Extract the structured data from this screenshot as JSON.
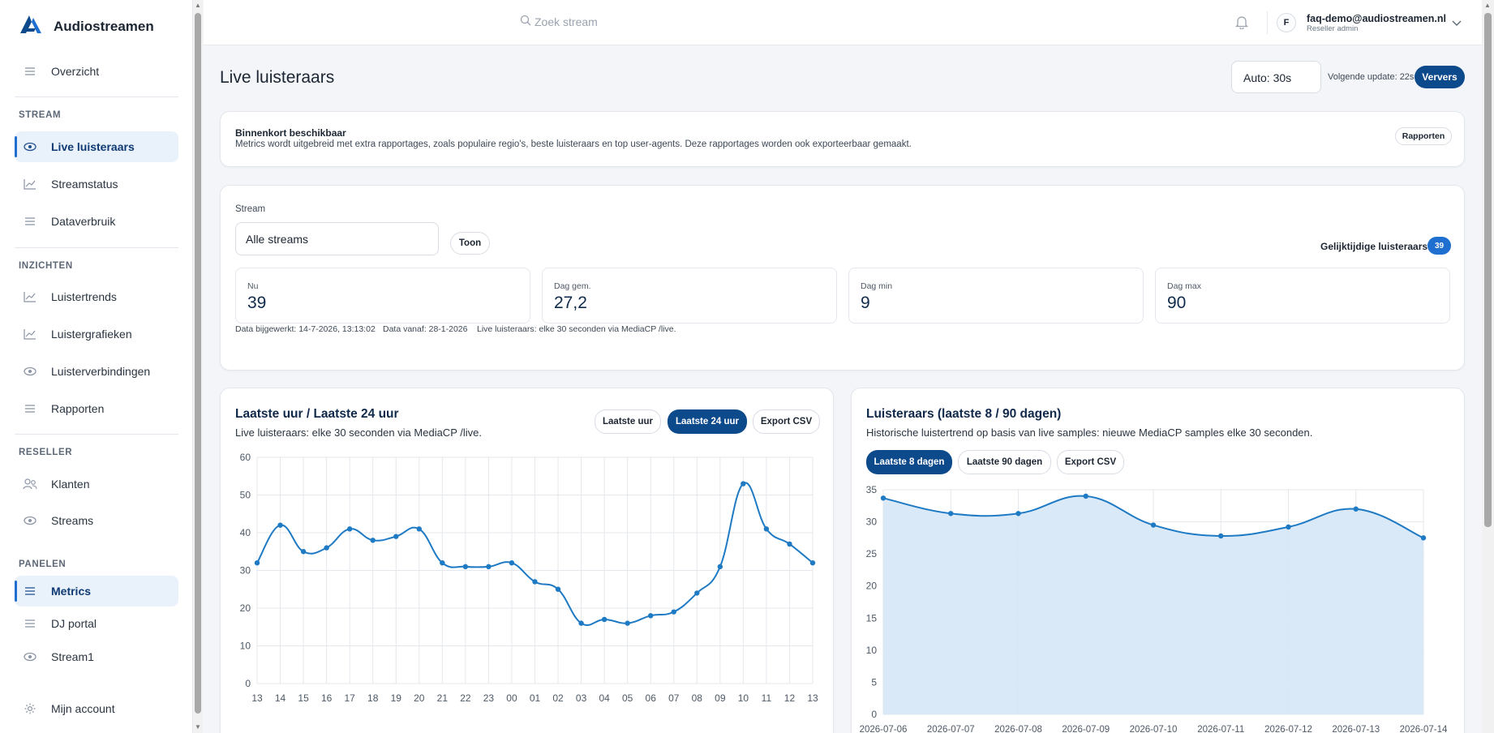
{
  "app": {
    "name": "Audiostreamen"
  },
  "sidebar": {
    "overview": "Overzicht",
    "sections": {
      "stream": "STREAM",
      "insights": "INZICHTEN",
      "reseller": "RESELLER",
      "panels": "PANELEN"
    },
    "items": {
      "live": "Live luisteraars",
      "status": "Streamstatus",
      "data": "Dataverbruik",
      "trends": "Luistertrends",
      "graphs": "Luistergrafieken",
      "connections": "Luisterverbindingen",
      "reports": "Rapporten",
      "clients": "Klanten",
      "streams": "Streams",
      "metrics": "Metrics",
      "dj": "DJ portal",
      "stream1": "Stream1",
      "account": "Mijn account"
    }
  },
  "topbar": {
    "search_placeholder": "Zoek stream",
    "avatar_letter": "F",
    "user_email": "faq-demo@audiostreamen.nl",
    "user_role": "Reseller admin"
  },
  "header": {
    "title": "Live luisteraars",
    "auto_refresh": "Auto: 30s",
    "next_update": "Volgende update: 22s",
    "refresh_button": "Ververs"
  },
  "notice": {
    "title": "Binnenkort beschikbaar",
    "text": "Metrics wordt uitgebreid met extra rapportages, zoals populaire regio's, beste luisteraars en top user-agents. Deze rapportages worden ook exporteerbaar gemaakt.",
    "button": "Rapporten"
  },
  "stream_panel": {
    "label": "Stream",
    "selected": "Alle streams",
    "show_button": "Toon",
    "concurrent_label": "Gelijktijdige luisteraars",
    "concurrent_value": "39",
    "stats": [
      {
        "label": "Nu",
        "value": "39"
      },
      {
        "label": "Dag gem.",
        "value": "27,2"
      },
      {
        "label": "Dag min",
        "value": "9"
      },
      {
        "label": "Dag max",
        "value": "90"
      }
    ],
    "meta": {
      "updated": "Data bijgewerkt: 14-7-2026, 13:13:02",
      "since": "Data vanaf: 28-1-2026",
      "source": "Live luisteraars: elke 30 seconden via MediaCP /live."
    }
  },
  "chart_left_ui": {
    "title": "Laatste uur / Laatste 24 uur",
    "subtitle": "Live luisteraars: elke 30 seconden via MediaCP /live.",
    "btn_hour": "Laatste uur",
    "btn_24h": "Laatste 24 uur",
    "btn_export": "Export CSV"
  },
  "chart_right_ui": {
    "title": "Luisteraars (laatste 8 / 90 dagen)",
    "subtitle": "Historische luistertrend op basis van live samples: nieuwe MediaCP samples elke 30 seconden.",
    "btn_8d": "Laatste 8 dagen",
    "btn_90d": "Laatste 90 dagen",
    "btn_export": "Export CSV"
  },
  "colors": {
    "accent": "#1f6fd1",
    "primary_dark": "#0d4a8c",
    "line": "#1f7ac4",
    "area_fill": "#d6e7f7"
  },
  "chart_data": [
    {
      "type": "line",
      "categories": [
        "13",
        "14",
        "15",
        "16",
        "17",
        "18",
        "19",
        "20",
        "21",
        "22",
        "23",
        "00",
        "01",
        "02",
        "03",
        "04",
        "05",
        "06",
        "07",
        "08",
        "09",
        "10",
        "11",
        "12",
        "13"
      ],
      "values": [
        32,
        42,
        35,
        36,
        41,
        38,
        39,
        41,
        32,
        31,
        31,
        32,
        27,
        25,
        16,
        17,
        16,
        18,
        19,
        24,
        31,
        53,
        41,
        37,
        32
      ],
      "ylim": [
        0,
        60
      ],
      "yticks": [
        0,
        10,
        20,
        30,
        40,
        50,
        60
      ],
      "grid": true
    },
    {
      "type": "area",
      "categories": [
        "2026-07-06",
        "2026-07-07",
        "2026-07-08",
        "2026-07-09",
        "2026-07-10",
        "2026-07-11",
        "2026-07-12",
        "2026-07-13",
        "2026-07-14"
      ],
      "values": [
        33.7,
        31.3,
        31.3,
        34.0,
        29.5,
        27.8,
        29.2,
        32.0,
        27.5
      ],
      "ylim": [
        0,
        35
      ],
      "yticks": [
        0,
        5,
        10,
        15,
        20,
        25,
        30,
        35
      ],
      "grid": true
    }
  ]
}
